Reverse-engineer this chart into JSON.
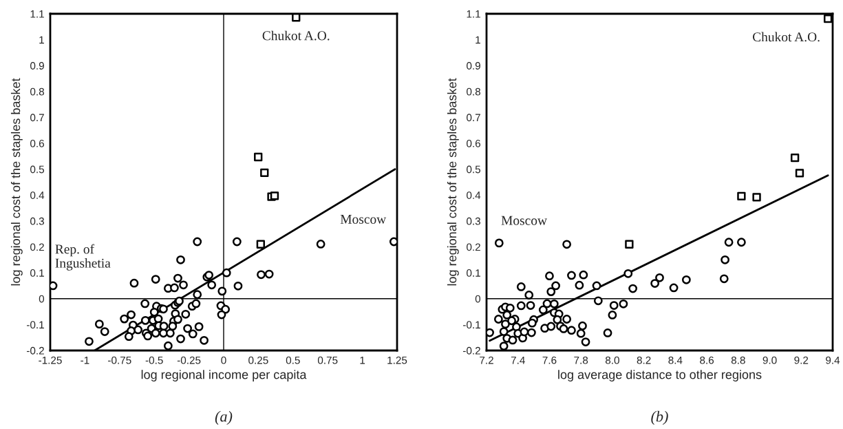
{
  "chart_data": [
    {
      "type": "scatter",
      "xlabel": "log regional income per capita",
      "ylabel": "log regional cost of the staples basket",
      "xlim": [
        -1.25,
        1.25
      ],
      "xticks": [
        -1.25,
        -1,
        -0.75,
        -0.5,
        -0.25,
        0,
        0.25,
        0.5,
        0.75,
        1,
        1.25
      ],
      "ylim": [
        -0.2,
        1.1
      ],
      "yticks": [
        -0.2,
        -0.1,
        0,
        0.1,
        0.2,
        0.3,
        0.4,
        0.5,
        0.6,
        0.7,
        0.8,
        0.9,
        1,
        1.1
      ],
      "ref_lines": [
        {
          "axis": "x",
          "value": 0,
          "color": "#000000"
        },
        {
          "axis": "y",
          "value": 0,
          "color": "#000000"
        }
      ],
      "annotations": [
        {
          "text": "Rep. of\nIngushetia",
          "x": -1.23,
          "y": 0.05
        },
        {
          "text": "Chukot A.O.",
          "x": 0.522,
          "y": 1.086
        },
        {
          "text": "Moscow",
          "x": 1.227,
          "y": 0.22
        },
        "(a)"
      ],
      "series": [
        {
          "marker": "circle",
          "color": "#000000",
          "x": [
            -1.23,
            -0.645,
            -0.49,
            -0.19,
            0.096,
            -0.31,
            -0.4,
            -0.355,
            -0.33,
            -0.29,
            -0.12,
            -0.106,
            -0.086,
            -0.011,
            0.021,
            0.104,
            -0.19,
            -0.567,
            -0.484,
            -0.45,
            -0.434,
            -0.35,
            -0.33,
            -0.32,
            -0.227,
            -0.199,
            -0.02,
            0.013,
            -0.015,
            -0.667,
            -0.716,
            -0.5,
            -0.348,
            -0.274,
            -0.564,
            -0.509,
            -0.471,
            -0.36,
            -0.33,
            -0.896,
            -0.857,
            -0.97,
            -0.653,
            -0.617,
            -0.667,
            -0.683,
            -0.559,
            -0.547,
            -0.52,
            -0.49,
            -0.468,
            -0.434,
            -0.431,
            -0.385,
            -0.368,
            -0.4,
            -0.31,
            -0.26,
            -0.222,
            -0.178,
            -0.141,
            0.27,
            0.328,
            0.7,
            1.227
          ],
          "values": [
            0.05,
            0.06,
            0.075,
            0.22,
            0.22,
            0.15,
            0.04,
            0.042,
            0.079,
            0.053,
            0.084,
            0.091,
            0.053,
            0.029,
            0.1,
            0.049,
            0.016,
            -0.019,
            -0.029,
            -0.038,
            -0.04,
            -0.025,
            -0.015,
            -0.009,
            -0.029,
            -0.019,
            -0.027,
            -0.041,
            -0.062,
            -0.062,
            -0.078,
            -0.052,
            -0.058,
            -0.06,
            -0.084,
            -0.084,
            -0.078,
            -0.087,
            -0.08,
            -0.098,
            -0.127,
            -0.165,
            -0.102,
            -0.12,
            -0.124,
            -0.146,
            -0.133,
            -0.144,
            -0.115,
            -0.133,
            -0.104,
            -0.133,
            -0.106,
            -0.133,
            -0.106,
            -0.182,
            -0.155,
            -0.115,
            -0.136,
            -0.108,
            -0.161,
            0.093,
            0.095,
            0.211,
            0.22
          ]
        },
        {
          "marker": "square",
          "color": "#000000",
          "x": [
            0.522,
            0.249,
            0.294,
            0.345,
            0.367,
            0.267
          ],
          "values": [
            1.086,
            0.547,
            0.486,
            0.394,
            0.397,
            0.21
          ]
        },
        {
          "type": "line",
          "color": "#000000",
          "x": [
            -0.93,
            1.235
          ],
          "values": [
            -0.2,
            0.5
          ]
        }
      ]
    },
    {
      "type": "scatter",
      "xlabel": "log average distance to other regions",
      "ylabel": "log regional cost of the staples basket",
      "xlim": [
        7.2,
        9.4
      ],
      "xticks": [
        7.2,
        7.4,
        7.6,
        7.8,
        {
          "value": 8,
          "label": "8.0"
        },
        8.2,
        8.4,
        8.6,
        8.8,
        {
          "value": 9,
          "label": "9.0"
        },
        9.2,
        9.4
      ],
      "ylim": [
        -0.2,
        1.1
      ],
      "yticks": [
        -0.2,
        -0.1,
        0,
        0.1,
        0.2,
        0.3,
        0.4,
        0.5,
        0.6,
        0.7,
        0.8,
        0.9,
        1,
        1.1
      ],
      "ref_lines": [
        {
          "axis": "y",
          "value": 0,
          "color": "#000000"
        }
      ],
      "annotations": [
        {
          "text": "Moscow",
          "x": 7.28,
          "y": 0.215
        },
        {
          "text": "Chukot A.O.",
          "x": 9.37,
          "y": 1.081
        },
        "(b)"
      ],
      "series": [
        {
          "marker": "circle",
          "color": "#000000",
          "x": [
            7.28,
            7.71,
            7.6,
            7.74,
            7.816,
            7.64,
            7.61,
            7.79,
            7.9,
            8.1,
            8.13,
            7.42,
            7.47,
            7.42,
            7.48,
            7.585,
            7.63,
            7.91,
            8.01,
            8.07,
            8.0,
            7.3,
            7.32,
            7.35,
            7.33,
            7.276,
            7.38,
            7.32,
            7.36,
            7.56,
            7.63,
            7.66,
            7.65,
            7.71,
            7.5,
            7.49,
            7.39,
            7.57,
            7.61,
            7.67,
            7.69,
            7.74,
            7.81,
            7.8,
            7.83,
            7.97,
            7.22,
            7.31,
            7.33,
            7.366,
            7.4,
            7.43,
            7.44,
            7.486,
            7.31,
            8.74,
            8.82,
            8.716,
            8.71,
            8.47,
            8.39,
            8.27,
            8.3
          ],
          "values": [
            0.215,
            0.21,
            0.088,
            0.09,
            0.092,
            0.05,
            0.027,
            0.052,
            0.05,
            0.097,
            0.039,
            0.046,
            0.014,
            -0.027,
            -0.026,
            -0.019,
            -0.02,
            -0.008,
            -0.026,
            -0.02,
            -0.063,
            -0.041,
            -0.032,
            -0.036,
            -0.063,
            -0.079,
            -0.079,
            -0.098,
            -0.085,
            -0.043,
            -0.054,
            -0.059,
            -0.081,
            -0.079,
            -0.081,
            -0.094,
            -0.109,
            -0.114,
            -0.107,
            -0.106,
            -0.116,
            -0.122,
            -0.105,
            -0.134,
            -0.167,
            -0.132,
            -0.131,
            -0.127,
            -0.153,
            -0.16,
            -0.134,
            -0.152,
            -0.128,
            -0.131,
            -0.183,
            0.218,
            0.218,
            0.15,
            0.077,
            0.073,
            0.042,
            0.059,
            0.081
          ]
        },
        {
          "marker": "square",
          "color": "#000000",
          "x": [
            9.37,
            9.16,
            9.19,
            8.82,
            8.917,
            8.107
          ],
          "values": [
            1.081,
            0.544,
            0.485,
            0.396,
            0.392,
            0.21
          ]
        },
        {
          "type": "line",
          "color": "#000000",
          "x": [
            7.22,
            9.37
          ],
          "values": [
            -0.162,
            0.476
          ]
        }
      ]
    }
  ]
}
